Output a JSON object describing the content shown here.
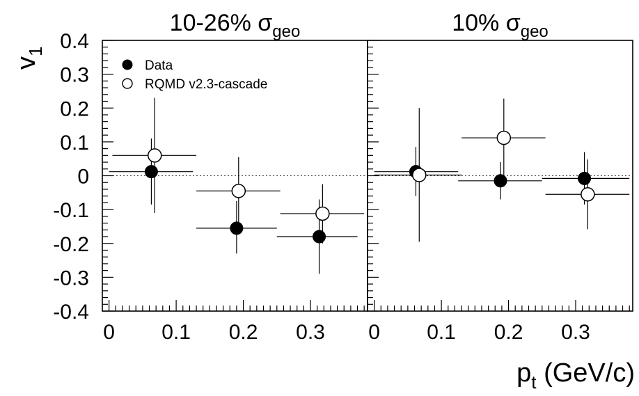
{
  "chart_data": {
    "type": "scatter",
    "xlabel_main": "p",
    "xlabel_sub": "t",
    "xlabel_unit": " (GeV/c)",
    "ylabel_main": "v",
    "ylabel_sub": "1",
    "ylim": [
      -0.4,
      0.4
    ],
    "xlim": [
      -0.01,
      0.385
    ],
    "y_ticks": [
      "0.4",
      "0.3",
      "0.2",
      "0.1",
      "0",
      "-0.1",
      "-0.2",
      "-0.3",
      "-0.4"
    ],
    "x_ticks": [
      "0",
      "0.1",
      "0.2",
      "0.3"
    ],
    "legend": {
      "data_label": "Data",
      "model_label": "RQMD v2.3-cascade",
      "placement": "top-left"
    },
    "reference_line": 0,
    "panels": [
      {
        "title_main": "10-26% σ",
        "title_sub": "geo",
        "series": [
          {
            "name": "Data",
            "marker": "filled-circle",
            "points": [
              {
                "x": 0.063,
                "y": 0.012,
                "xlo": 0.0,
                "xhi": 0.125,
                "ylo": -0.085,
                "yhi": 0.11
              },
              {
                "x": 0.19,
                "y": -0.155,
                "xlo": 0.13,
                "xhi": 0.25,
                "ylo": -0.23,
                "yhi": -0.075
              },
              {
                "x": 0.313,
                "y": -0.18,
                "xlo": 0.25,
                "xhi": 0.37,
                "ylo": -0.29,
                "yhi": -0.07
              }
            ]
          },
          {
            "name": "RQMD v2.3-cascade",
            "marker": "open-circle",
            "points": [
              {
                "x": 0.068,
                "y": 0.06,
                "xlo": 0.005,
                "xhi": 0.13,
                "ylo": -0.11,
                "yhi": 0.23
              },
              {
                "x": 0.193,
                "y": -0.045,
                "xlo": 0.13,
                "xhi": 0.255,
                "ylo": -0.14,
                "yhi": 0.055
              },
              {
                "x": 0.318,
                "y": -0.112,
                "xlo": 0.255,
                "xhi": 0.38,
                "ylo": -0.2,
                "yhi": -0.025
              }
            ]
          }
        ]
      },
      {
        "title_main": "10% σ",
        "title_sub": "geo",
        "series": [
          {
            "name": "Data",
            "marker": "filled-circle",
            "points": [
              {
                "x": 0.062,
                "y": 0.012,
                "xlo": 0.0,
                "xhi": 0.125,
                "ylo": -0.06,
                "yhi": 0.085
              },
              {
                "x": 0.188,
                "y": -0.015,
                "xlo": 0.125,
                "xhi": 0.25,
                "ylo": -0.07,
                "yhi": 0.04
              },
              {
                "x": 0.313,
                "y": -0.008,
                "xlo": 0.25,
                "xhi": 0.38,
                "ylo": -0.085,
                "yhi": 0.07
              }
            ]
          },
          {
            "name": "RQMD v2.3-cascade",
            "marker": "open-circle",
            "points": [
              {
                "x": 0.067,
                "y": 0.002,
                "xlo": 0.0,
                "xhi": 0.13,
                "ylo": -0.195,
                "yhi": 0.2
              },
              {
                "x": 0.193,
                "y": 0.112,
                "xlo": 0.13,
                "xhi": 0.255,
                "ylo": 0.0,
                "yhi": 0.228
              },
              {
                "x": 0.318,
                "y": -0.055,
                "xlo": 0.255,
                "xhi": 0.38,
                "ylo": -0.158,
                "yhi": 0.048
              }
            ]
          }
        ]
      }
    ]
  }
}
